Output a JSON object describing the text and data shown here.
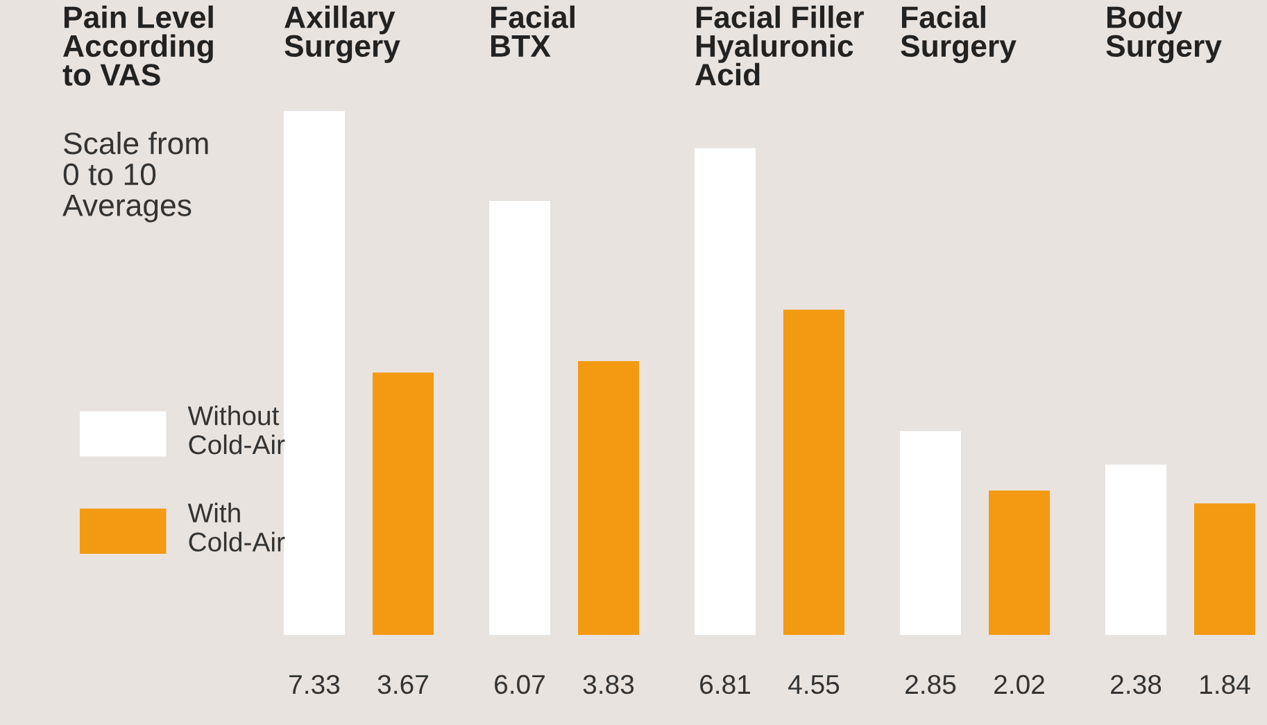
{
  "chart_data": {
    "type": "bar",
    "title": "Pain Level\nAccording\nto VAS",
    "subtitle": "Scale from\n0 to 10\nAverages",
    "categories": [
      "Axillary\nSurgery",
      "Facial\nBTX",
      "Facial Filler\nHyaluronic\nAcid",
      "Facial\nSurgery",
      "Body\nSurgery"
    ],
    "series": [
      {
        "name": "Without\nCold-Air",
        "color": "#ffffff",
        "values": [
          7.33,
          6.07,
          6.81,
          2.85,
          2.38
        ]
      },
      {
        "name": "With\nCold-Air",
        "color": "#f39a12",
        "values": [
          3.67,
          3.83,
          4.55,
          2.02,
          1.84
        ]
      }
    ],
    "data_labels": true,
    "legend": "left"
  }
}
